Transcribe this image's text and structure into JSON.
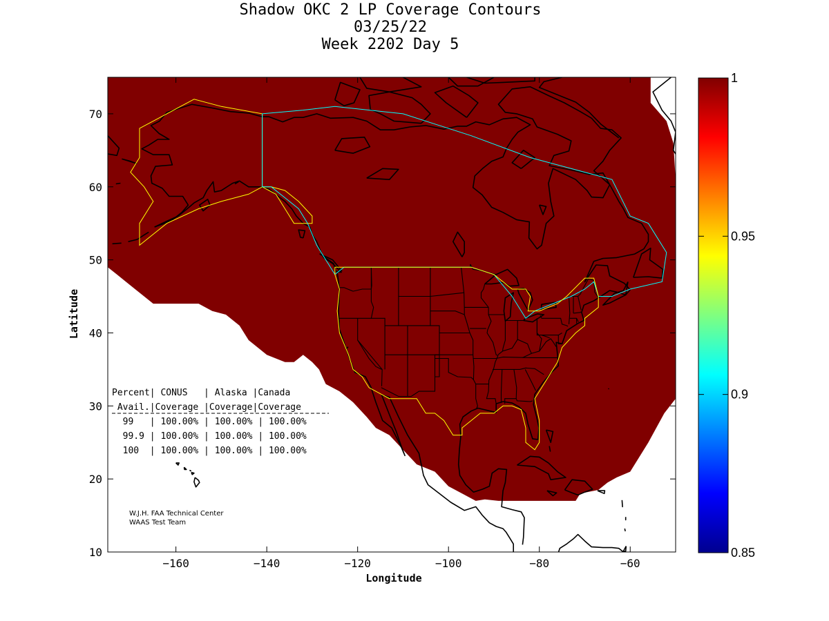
{
  "titles": {
    "line1": "Shadow OKC 2 LP Coverage Contours",
    "line2": "03/25/22",
    "line3": "Week 2202 Day 5"
  },
  "chart_data": {
    "type": "heatmap",
    "title": "Shadow OKC 2 LP Coverage Contours",
    "subtitle": [
      "03/25/22",
      "Week 2202 Day 5"
    ],
    "xlabel": "Longitude",
    "ylabel": "Latitude",
    "xlim": [
      -175,
      -50
    ],
    "ylim": [
      10,
      75
    ],
    "xticks": [
      -160,
      -140,
      -120,
      -100,
      -80,
      -60
    ],
    "yticks": [
      10,
      20,
      30,
      40,
      50,
      60,
      70
    ],
    "colorbar": {
      "range": [
        0.85,
        1
      ],
      "ticks": [
        0.85,
        0.9,
        0.95,
        1
      ],
      "tick_labels": [
        "0.85",
        "0.9",
        "0.95",
        "1"
      ],
      "colormap": "jet"
    },
    "coverage_value": 1,
    "coverage_color": "#800000",
    "coverage_outline": [
      [
        -175,
        75
      ],
      [
        -55.5,
        75
      ],
      [
        -55.5,
        71.5
      ],
      [
        -52,
        69
      ],
      [
        -50.5,
        66
      ],
      [
        -50,
        61
      ],
      [
        -50,
        31
      ],
      [
        -52.5,
        29
      ],
      [
        -56,
        25
      ],
      [
        -60,
        21
      ],
      [
        -63,
        20.2
      ],
      [
        -65,
        19.5
      ],
      [
        -67,
        18.5
      ],
      [
        -71,
        18
      ],
      [
        -72,
        17
      ],
      [
        -82,
        17
      ],
      [
        -85,
        17
      ],
      [
        -89,
        17
      ],
      [
        -92,
        17.2
      ],
      [
        -94,
        17
      ],
      [
        -97,
        18
      ],
      [
        -100,
        19
      ],
      [
        -103,
        21
      ],
      [
        -107,
        22
      ],
      [
        -110,
        24
      ],
      [
        -113,
        26
      ],
      [
        -116,
        27
      ],
      [
        -118,
        28.5
      ],
      [
        -121,
        30.5
      ],
      [
        -124,
        32
      ],
      [
        -127,
        33
      ],
      [
        -128.5,
        35
      ],
      [
        -130,
        36
      ],
      [
        -132,
        37
      ],
      [
        -134,
        36
      ],
      [
        -136,
        36
      ],
      [
        -140,
        37
      ],
      [
        -144,
        39
      ],
      [
        -146,
        41
      ],
      [
        -149,
        42.5
      ],
      [
        -152,
        43
      ],
      [
        -155,
        44
      ],
      [
        -158,
        44
      ],
      [
        -162,
        44
      ],
      [
        -165,
        44
      ],
      [
        -167,
        45
      ],
      [
        -169,
        46
      ],
      [
        -171,
        47
      ],
      [
        -173,
        48
      ],
      [
        -175,
        49
      ]
    ],
    "boundaries": [
      {
        "name": "Alaska",
        "color": "#ffff00"
      },
      {
        "name": "Canada",
        "color": "#00ffff"
      },
      {
        "name": "CONUS",
        "color": "#ffff00"
      }
    ],
    "availability_table": {
      "header1": [
        "Percent",
        "CONUS",
        "Alaska",
        "Canada"
      ],
      "header2": [
        "Avail.",
        "Coverage",
        "Coverage",
        "Coverage"
      ],
      "rows": [
        [
          "99",
          "100.00%",
          "100.00%",
          "100.00%"
        ],
        [
          "99.9",
          "100.00%",
          "100.00%",
          "100.00%"
        ],
        [
          "100",
          "100.00%",
          "100.00%",
          "100.00%"
        ]
      ]
    },
    "credit": [
      "W.J.H. FAA Technical Center",
      "WAAS Test Team"
    ]
  },
  "table_lines": {
    "header1": "Percent| CONUS   | Alaska |Canada",
    "header2": " Avail.|Coverage |Coverage|Coverage",
    "row1": "  99   | 100.00% | 100.00% | 100.00%",
    "row2": "  99.9 | 100.00% | 100.00% | 100.00%",
    "row3": "  100  | 100.00% | 100.00% | 100.00%"
  }
}
